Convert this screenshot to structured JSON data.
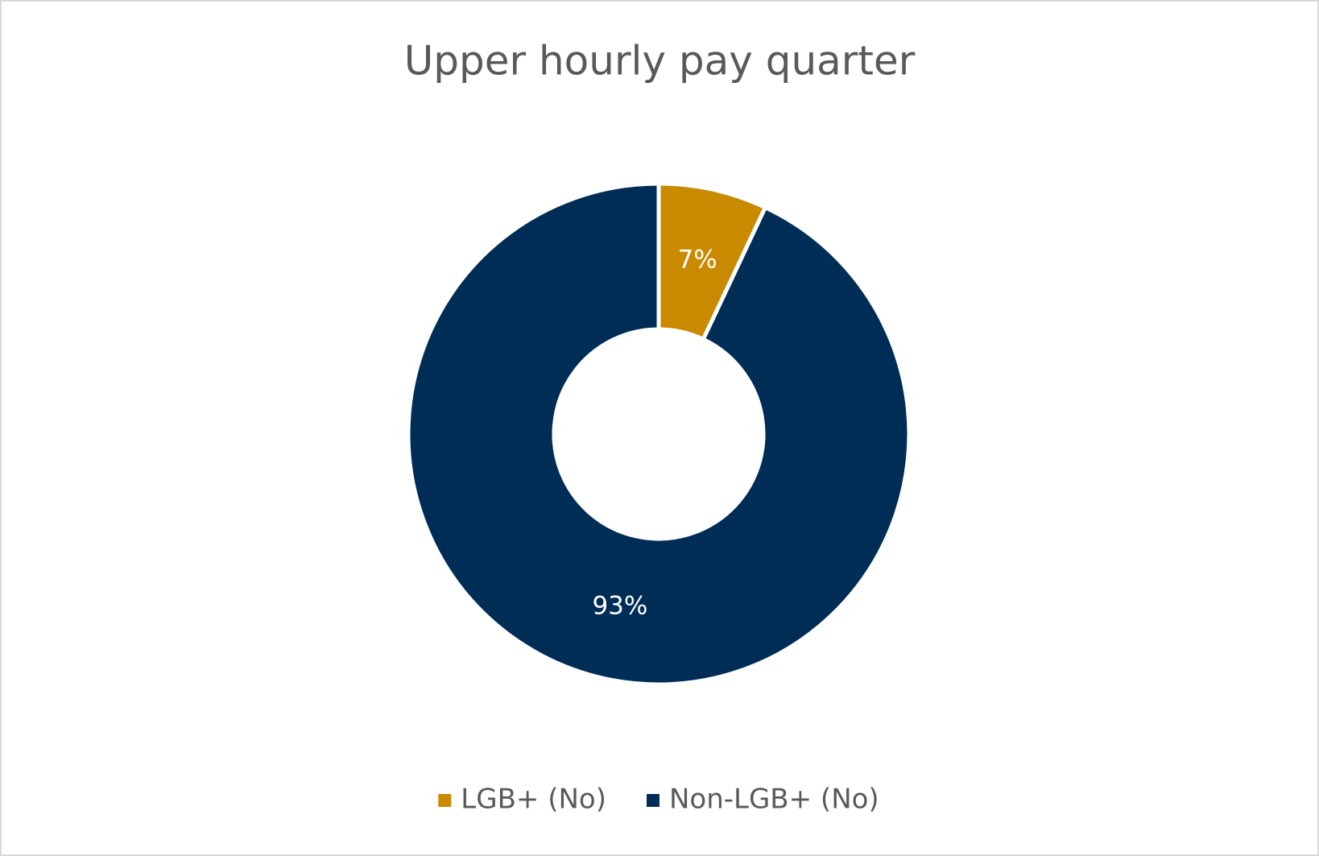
{
  "chart_data": {
    "type": "donut",
    "title": "Upper hourly pay quarter",
    "categories": [
      "LGB+ (No)",
      "Non-LGB+ (No)"
    ],
    "values": [
      7,
      93
    ],
    "value_labels": [
      "7%",
      "93%"
    ],
    "colors": [
      "#c98a00",
      "#002d56"
    ],
    "legend": "bottom"
  }
}
